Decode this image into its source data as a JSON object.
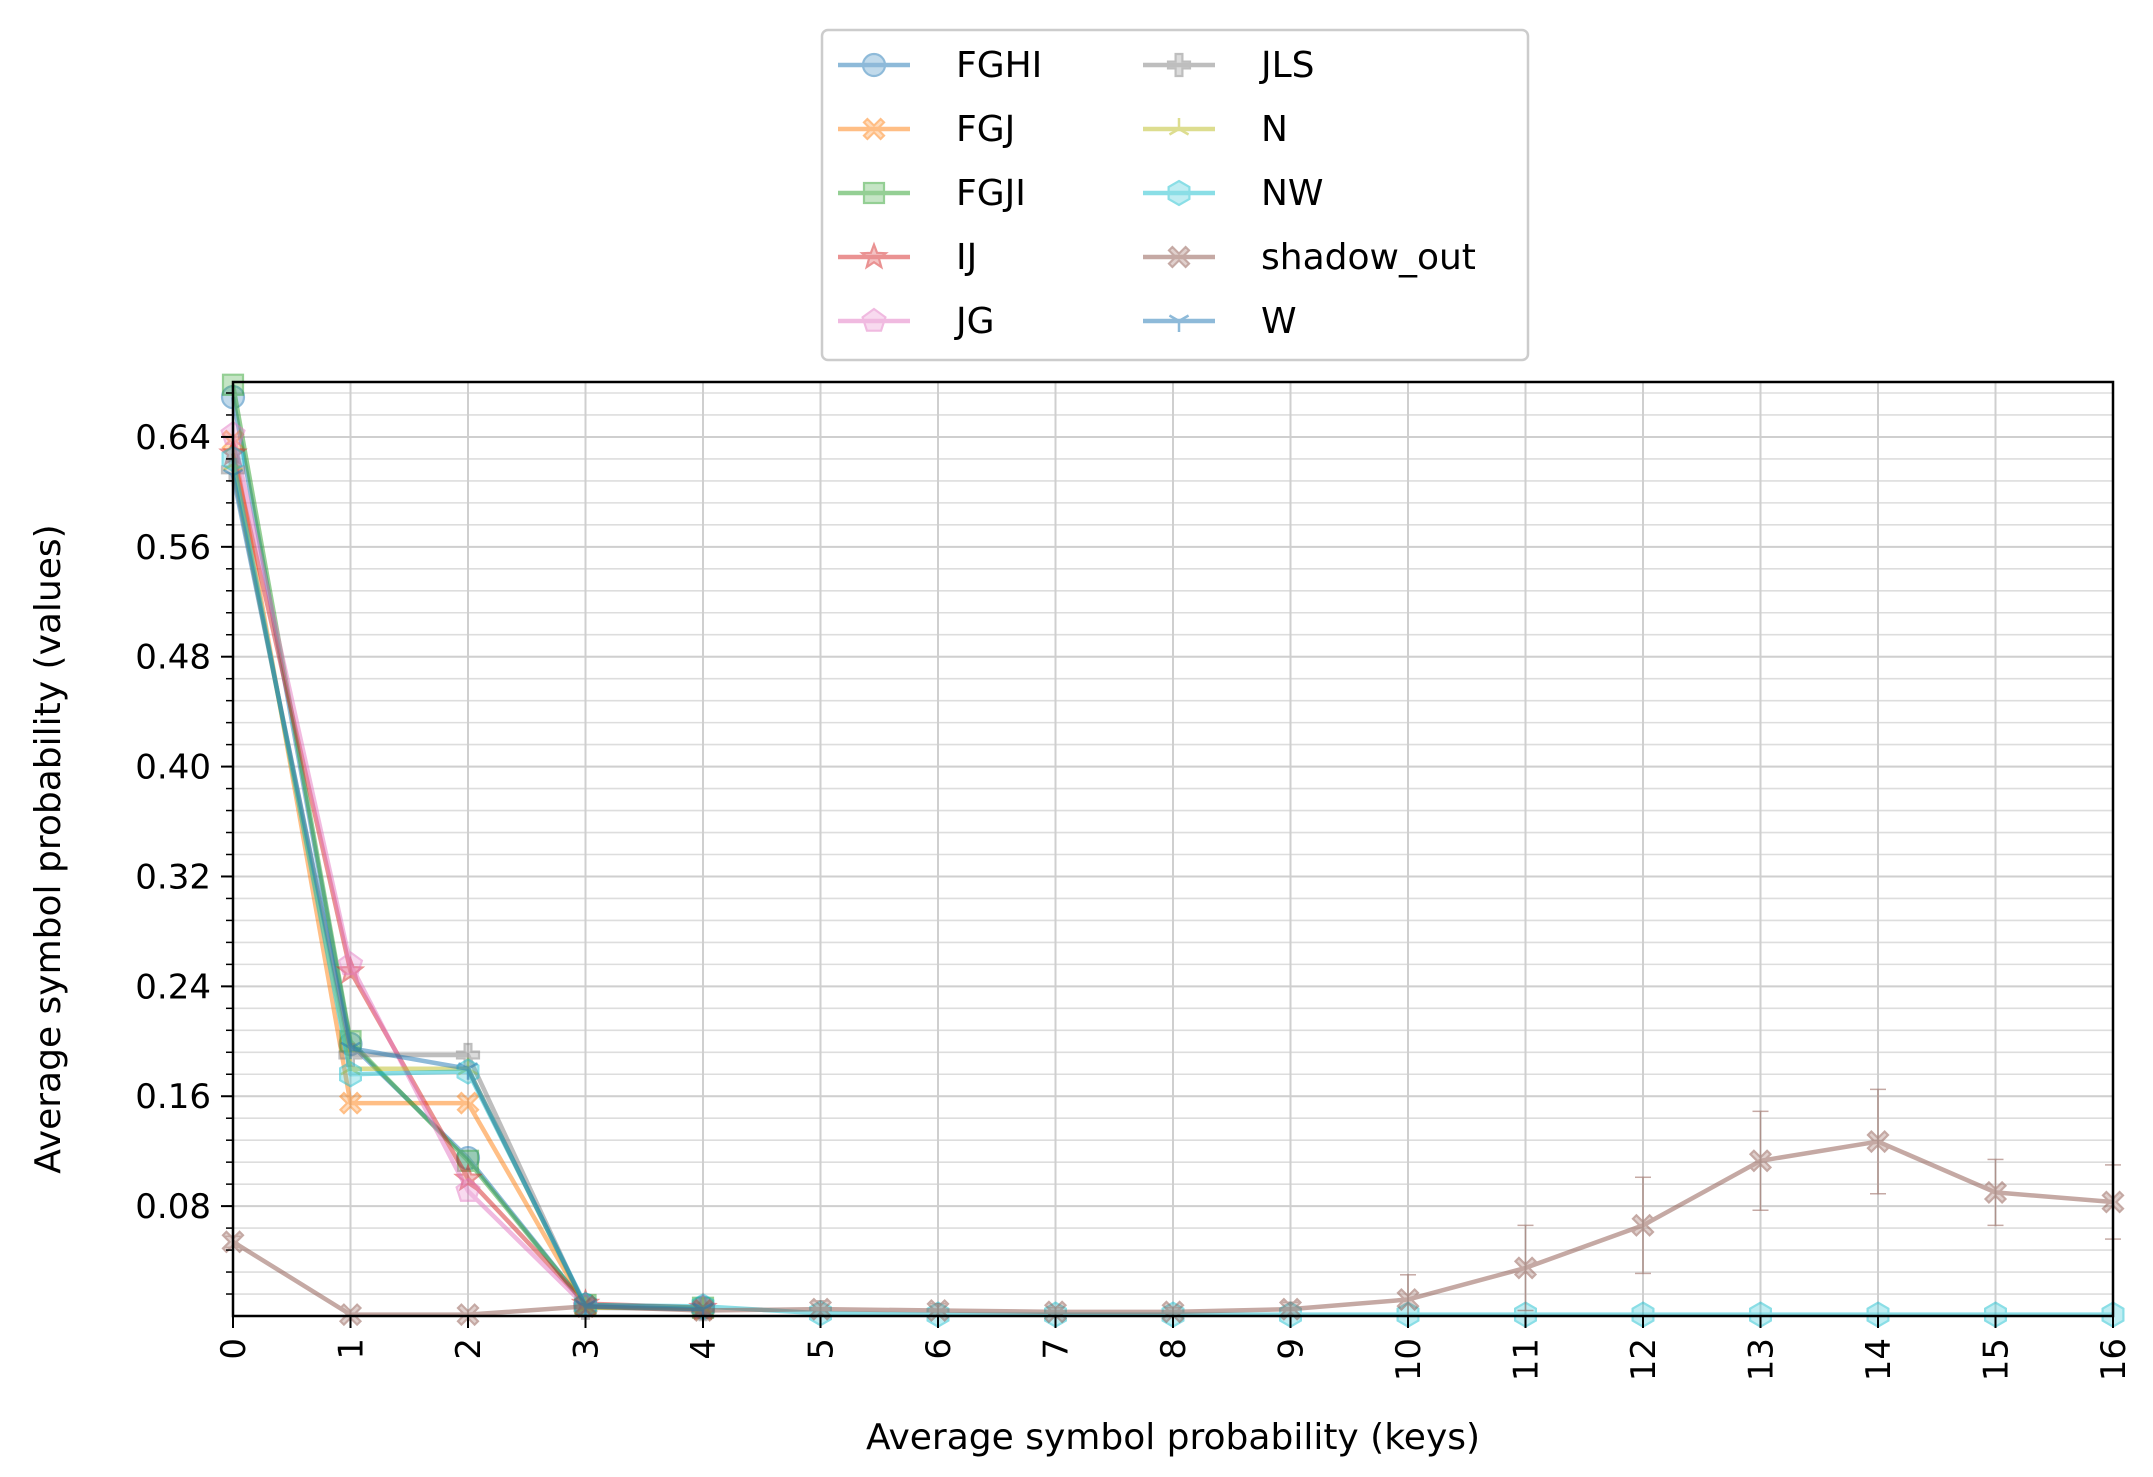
{
  "chart_data": {
    "type": "line",
    "title": "",
    "xlabel": "Average symbol probability (keys)",
    "ylabel": "Average symbol probability (values)",
    "xlim": [
      0,
      16
    ],
    "ylim": [
      0,
      0.68
    ],
    "x_ticks": [
      0,
      1,
      2,
      3,
      4,
      5,
      6,
      7,
      8,
      9,
      10,
      11,
      12,
      13,
      14,
      15,
      16
    ],
    "x_tick_labels": [
      "0",
      "1",
      "2",
      "3",
      "4",
      "5",
      "6",
      "7",
      "8",
      "9",
      "10",
      "11",
      "12",
      "13",
      "14",
      "15",
      "16"
    ],
    "y_ticks": [
      0.08,
      0.16,
      0.24,
      0.32,
      0.4,
      0.48,
      0.56,
      0.64
    ],
    "y_tick_labels": [
      "0.08",
      "0.16",
      "0.24",
      "0.32",
      "0.40",
      "0.48",
      "0.56",
      "0.64"
    ],
    "y_minor_step": 0.016,
    "grid": true,
    "legend_position": "top-center (outside plot)",
    "legend_columns": 2,
    "series": [
      {
        "name": "FGHI",
        "color": "#1f77b4",
        "marker": "circle",
        "x": [
          0,
          1,
          2,
          3,
          4
        ],
        "y": [
          0.669,
          0.198,
          0.115,
          0.008,
          0.006
        ]
      },
      {
        "name": "FGJ",
        "color": "#ff7f0e",
        "marker": "x-filled",
        "x": [
          0,
          1,
          2,
          3,
          4
        ],
        "y": [
          0.637,
          0.155,
          0.155,
          0.007,
          0.005
        ]
      },
      {
        "name": "FGJI",
        "color": "#2ca02c",
        "marker": "square",
        "x": [
          0,
          1,
          2,
          3,
          4
        ],
        "y": [
          0.678,
          0.2,
          0.113,
          0.008,
          0.006
        ]
      },
      {
        "name": "IJ",
        "color": "#d62728",
        "marker": "star",
        "x": [
          0,
          1,
          2,
          3,
          4
        ],
        "y": [
          0.628,
          0.251,
          0.1,
          0.009,
          0.006
        ]
      },
      {
        "name": "JG",
        "color": "#e377c2",
        "marker": "pentagon",
        "x": [
          0,
          1,
          2,
          3,
          4
        ],
        "y": [
          0.642,
          0.256,
          0.091,
          0.007,
          0.006
        ]
      },
      {
        "name": "JLS",
        "color": "#7f7f7f",
        "marker": "plus-filled",
        "x": [
          0,
          1,
          2,
          3,
          4
        ],
        "y": [
          0.616,
          0.19,
          0.19,
          0.006,
          0.005
        ]
      },
      {
        "name": "N",
        "color": "#bcbd22",
        "marker": "tri-up",
        "x": [
          0,
          1,
          2,
          3,
          4
        ],
        "y": [
          0.62,
          0.18,
          0.18,
          0.006,
          0.006
        ]
      },
      {
        "name": "NW",
        "color": "#17becf",
        "marker": "hexagon",
        "x": [
          0,
          1,
          2,
          3,
          4,
          5,
          6,
          7,
          8,
          9,
          10,
          11,
          12,
          13,
          14,
          15,
          16
        ],
        "y": [
          0.624,
          0.176,
          0.178,
          0.008,
          0.007,
          0.002,
          0.001,
          0.001,
          0.001,
          0.001,
          0.001,
          0.001,
          0.001,
          0.001,
          0.001,
          0.001,
          0.001
        ]
      },
      {
        "name": "shadow_out",
        "color": "#8c564b",
        "marker": "x-filled",
        "x": [
          0,
          1,
          2,
          3,
          4,
          5,
          6,
          7,
          8,
          9,
          10,
          11,
          12,
          13,
          14,
          15,
          16
        ],
        "y": [
          0.054,
          0.001,
          0.001,
          0.007,
          0.004,
          0.005,
          0.004,
          0.003,
          0.003,
          0.005,
          0.012,
          0.035,
          0.066,
          0.113,
          0.127,
          0.09,
          0.083
        ],
        "yerr": [
          0.004,
          0,
          0,
          0.002,
          0.002,
          0.006,
          0.005,
          0.003,
          0.003,
          0.005,
          0.018,
          0.031,
          0.035,
          0.036,
          0.038,
          0.024,
          0.027
        ]
      },
      {
        "name": "W",
        "color": "#1f77b4",
        "marker": "tri-down",
        "x": [
          0,
          1,
          2,
          3,
          4
        ],
        "y": [
          0.612,
          0.195,
          0.18,
          0.007,
          0.005
        ]
      }
    ]
  }
}
